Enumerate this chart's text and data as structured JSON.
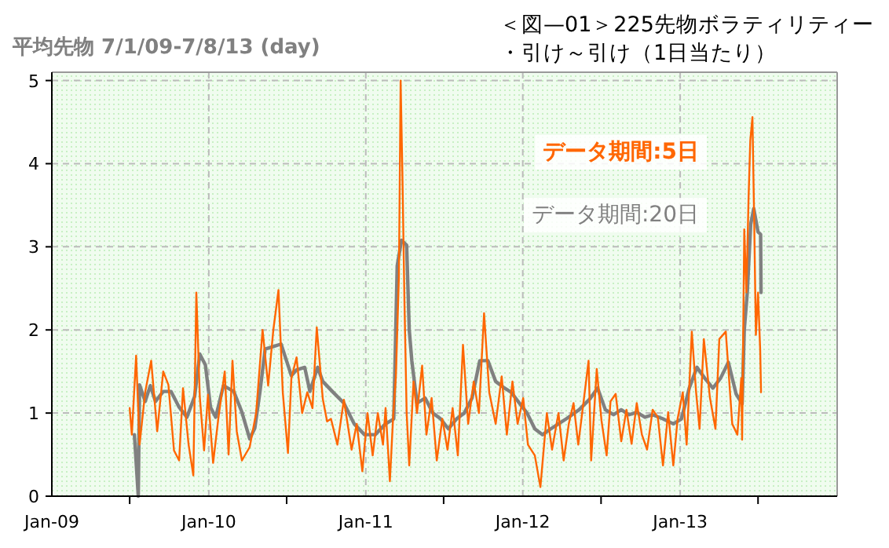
{
  "chart_data": {
    "type": "line",
    "title": "＜図—01＞225先物ボラティリティー・引け～引け（1日当たり）",
    "subtitle": "平均先物 7/1/09-7/8/13 (day)",
    "xlim": [
      "2009-01-01",
      "2014-01-01"
    ],
    "xticks": [
      {
        "value": "2009-01-01",
        "label": "Jan-09"
      },
      {
        "value": "2009-07-01",
        "label": null
      },
      {
        "value": "2010-01-01",
        "label": "Jan-10"
      },
      {
        "value": "2010-07-01",
        "label": null
      },
      {
        "value": "2011-01-01",
        "label": "Jan-11"
      },
      {
        "value": "2011-07-01",
        "label": null
      },
      {
        "value": "2012-01-01",
        "label": "Jan-12"
      },
      {
        "value": "2012-07-01",
        "label": null
      },
      {
        "value": "2013-01-01",
        "label": "Jan-13"
      },
      {
        "value": "2013-07-01",
        "label": null
      }
    ],
    "ylim": [
      0,
      5.1
    ],
    "yticks": [
      0,
      1,
      2,
      3,
      4,
      5
    ],
    "grid": true,
    "legend": "top right",
    "marker": "none",
    "line_style": "solid",
    "series": [
      {
        "name": "データ期間:5日",
        "color": "#ff6600",
        "x": [
          "2009-07-01",
          "2009-07-06",
          "2009-07-16",
          "2009-07-24",
          "2009-08-06",
          "2009-08-20",
          "2009-09-03",
          "2009-09-17",
          "2009-09-29",
          "2009-10-12",
          "2009-10-24",
          "2009-11-02",
          "2009-11-15",
          "2009-11-26",
          "2009-12-03",
          "2009-12-11",
          "2009-12-21",
          "2009-12-30",
          "2010-01-11",
          "2010-01-23",
          "2010-02-07",
          "2010-02-16",
          "2010-02-25",
          "2010-03-07",
          "2010-03-19",
          "2010-04-06",
          "2010-04-21",
          "2010-05-06",
          "2010-05-19",
          "2010-05-31",
          "2010-06-12",
          "2010-06-22",
          "2010-07-04",
          "2010-07-12",
          "2010-07-24",
          "2010-08-06",
          "2010-08-18",
          "2010-08-30",
          "2010-09-09",
          "2010-09-23",
          "2010-10-03",
          "2010-10-12",
          "2010-10-27",
          "2010-11-11",
          "2010-11-29",
          "2010-12-11",
          "2010-12-24",
          "2011-01-05",
          "2011-01-17",
          "2011-01-29",
          "2011-02-10",
          "2011-02-16",
          "2011-02-26",
          "2011-03-06",
          "2011-03-12",
          "2011-03-19",
          "2011-03-23",
          "2011-03-27",
          "2011-04-01",
          "2011-04-06",
          "2011-04-12",
          "2011-04-22",
          "2011-04-30",
          "2011-05-12",
          "2011-05-22",
          "2011-06-03",
          "2011-06-15",
          "2011-06-28",
          "2011-07-10",
          "2011-07-22",
          "2011-08-03",
          "2011-08-15",
          "2011-08-27",
          "2011-09-09",
          "2011-09-21",
          "2011-10-03",
          "2011-10-15",
          "2011-10-30",
          "2011-11-13",
          "2011-11-25",
          "2011-12-08",
          "2011-12-20",
          "2012-01-02",
          "2012-01-13",
          "2012-01-29",
          "2012-02-11",
          "2012-02-26",
          "2012-03-09",
          "2012-03-24",
          "2012-04-05",
          "2012-04-17",
          "2012-04-28",
          "2012-05-09",
          "2012-05-21",
          "2012-06-02",
          "2012-06-08",
          "2012-06-21",
          "2012-07-02",
          "2012-07-14",
          "2012-07-23",
          "2012-08-04",
          "2012-08-17",
          "2012-08-29",
          "2012-09-10",
          "2012-09-22",
          "2012-10-04",
          "2012-10-16",
          "2012-10-29",
          "2012-11-10",
          "2012-11-22",
          "2012-12-04",
          "2012-12-16",
          "2012-12-26",
          "2013-01-07",
          "2013-01-16",
          "2013-01-28",
          "2013-02-07",
          "2013-02-15",
          "2013-02-25",
          "2013-03-11",
          "2013-03-24",
          "2013-04-02",
          "2013-04-17",
          "2013-05-02",
          "2013-05-14",
          "2013-05-23",
          "2013-05-25",
          "2013-05-30",
          "2013-06-04",
          "2013-06-09",
          "2013-06-13",
          "2013-06-18",
          "2013-06-22",
          "2013-06-26",
          "2013-07-01",
          "2013-07-06",
          "2013-07-08"
        ],
        "values": [
          1.06,
          0.74,
          1.69,
          0.62,
          1.25,
          1.63,
          0.78,
          1.5,
          1.34,
          0.55,
          0.43,
          1.3,
          0.62,
          0.25,
          2.45,
          1.2,
          0.55,
          1.22,
          0.4,
          0.93,
          1.5,
          0.5,
          1.63,
          0.78,
          0.43,
          0.59,
          1.0,
          2.0,
          1.33,
          2.0,
          2.48,
          1.25,
          0.52,
          1.42,
          1.67,
          1.0,
          1.25,
          1.06,
          2.03,
          1.17,
          0.9,
          0.93,
          0.62,
          1.16,
          0.56,
          0.87,
          0.3,
          1.0,
          0.49,
          1.0,
          0.62,
          1.06,
          0.18,
          1.0,
          1.44,
          2.64,
          5.0,
          3.9,
          2.32,
          1.0,
          0.37,
          1.38,
          1.0,
          1.57,
          0.74,
          1.18,
          0.43,
          0.93,
          0.56,
          1.06,
          0.49,
          1.82,
          0.87,
          1.38,
          1.0,
          2.2,
          1.25,
          0.87,
          1.44,
          0.74,
          1.38,
          0.87,
          1.18,
          0.62,
          0.49,
          0.11,
          1.0,
          0.56,
          1.0,
          0.43,
          0.87,
          1.12,
          0.62,
          1.12,
          1.63,
          0.43,
          1.53,
          0.91,
          0.49,
          1.14,
          1.23,
          0.66,
          1.04,
          0.63,
          1.12,
          0.74,
          0.56,
          1.04,
          0.95,
          0.37,
          1.01,
          0.37,
          0.93,
          1.25,
          0.62,
          1.98,
          1.25,
          0.81,
          1.89,
          1.19,
          0.81,
          1.89,
          1.98,
          0.87,
          0.74,
          1.42,
          0.68,
          3.21,
          2.45,
          3.59,
          4.28,
          4.56,
          3.33,
          1.94,
          2.45,
          1.76,
          1.25
        ]
      },
      {
        "name": "データ期間:20日",
        "color": "#808080",
        "x": [
          "2009-07-12",
          "2009-07-21",
          "2009-07-24",
          "2009-08-06",
          "2009-08-18",
          "2009-08-30",
          "2009-09-17",
          "2009-10-05",
          "2009-10-24",
          "2009-11-11",
          "2009-11-29",
          "2009-12-11",
          "2009-12-24",
          "2010-01-05",
          "2010-01-17",
          "2010-02-04",
          "2010-02-28",
          "2010-03-19",
          "2010-04-06",
          "2010-04-18",
          "2010-04-30",
          "2010-05-12",
          "2010-05-31",
          "2010-06-18",
          "2010-06-30",
          "2010-07-12",
          "2010-07-24",
          "2010-08-12",
          "2010-08-24",
          "2010-09-11",
          "2010-09-23",
          "2010-10-17",
          "2010-11-11",
          "2010-12-05",
          "2010-12-29",
          "2011-01-23",
          "2011-02-16",
          "2011-03-07",
          "2011-03-15",
          "2011-03-25",
          "2011-04-06",
          "2011-04-12",
          "2011-04-18",
          "2011-04-30",
          "2011-05-19",
          "2011-06-06",
          "2011-06-24",
          "2011-07-12",
          "2011-07-31",
          "2011-08-18",
          "2011-09-05",
          "2011-09-23",
          "2011-10-12",
          "2011-10-30",
          "2011-11-17",
          "2011-12-05",
          "2011-12-24",
          "2012-01-11",
          "2012-01-29",
          "2012-02-16",
          "2012-03-06",
          "2012-03-24",
          "2012-04-11",
          "2012-05-11",
          "2012-06-05",
          "2012-06-23",
          "2012-07-11",
          "2012-07-30",
          "2012-08-17",
          "2012-09-04",
          "2012-09-22",
          "2012-10-11",
          "2012-10-29",
          "2012-11-22",
          "2012-12-16",
          "2013-01-04",
          "2013-01-22",
          "2013-02-09",
          "2013-02-27",
          "2013-03-18",
          "2013-04-05",
          "2013-04-23",
          "2013-05-11",
          "2013-05-25",
          "2013-05-30",
          "2013-06-06",
          "2013-06-14",
          "2013-06-21",
          "2013-07-01",
          "2013-07-07",
          "2013-07-08"
        ],
        "values": [
          0.74,
          0,
          1.34,
          1.14,
          1.33,
          1.14,
          1.26,
          1.26,
          1.07,
          0.95,
          1.2,
          1.71,
          1.58,
          1.07,
          0.95,
          1.33,
          1.26,
          1.01,
          0.69,
          0.82,
          1.26,
          1.77,
          1.8,
          1.83,
          1.64,
          1.45,
          1.52,
          1.55,
          1.26,
          1.55,
          1.38,
          1.25,
          1.12,
          0.87,
          0.74,
          0.74,
          0.87,
          0.93,
          2.77,
          3.08,
          3.02,
          2.0,
          1.63,
          1.12,
          1.18,
          1.0,
          0.93,
          0.81,
          0.93,
          1.0,
          1.18,
          1.63,
          1.63,
          1.38,
          1.31,
          1.25,
          1.12,
          1.0,
          0.81,
          0.74,
          0.81,
          0.87,
          0.93,
          1.04,
          1.17,
          1.3,
          1.04,
          0.98,
          1.04,
          0.98,
          1.01,
          0.95,
          0.98,
          0.93,
          0.87,
          0.93,
          1.3,
          1.55,
          1.42,
          1.3,
          1.42,
          1.61,
          1.23,
          1.11,
          2.0,
          2.45,
          3.27,
          3.46,
          3.18,
          3.15,
          2.45
        ]
      }
    ]
  }
}
